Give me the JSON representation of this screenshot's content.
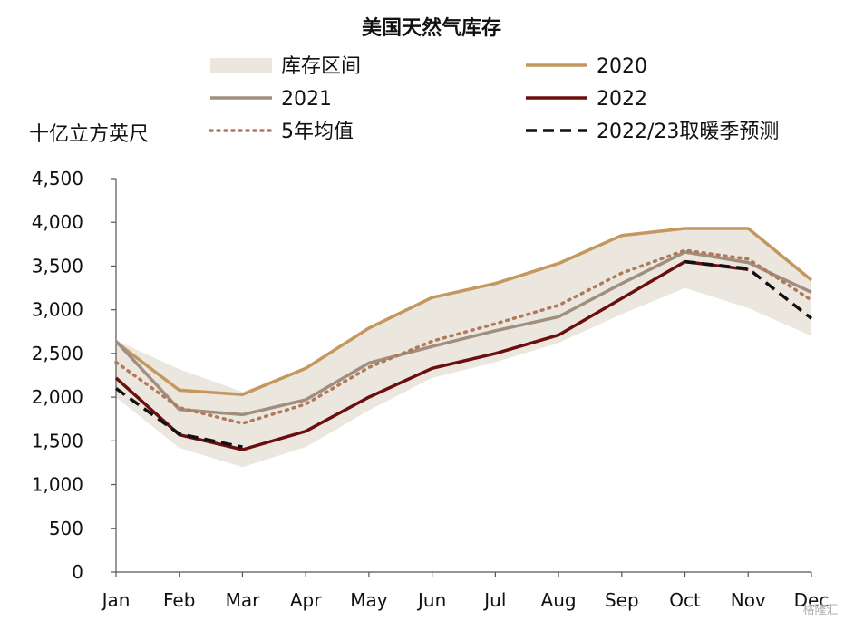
{
  "chart_data": {
    "type": "line",
    "title": "美国天然气库存",
    "ylabel": "十亿立方英尺",
    "xlabel": "",
    "categories": [
      "Jan",
      "Feb",
      "Mar",
      "Apr",
      "May",
      "Jun",
      "Jul",
      "Aug",
      "Sep",
      "Oct",
      "Nov",
      "Dec"
    ],
    "ylim": [
      0,
      4500
    ],
    "yticks": [
      0,
      500,
      1000,
      1500,
      2000,
      2500,
      3000,
      3500,
      4000,
      4500
    ],
    "ytick_labels": [
      "0",
      "500",
      "1,000",
      "1,500",
      "2,000",
      "2,500",
      "3,000",
      "3,500",
      "4,000",
      "4,500"
    ],
    "grid": false,
    "legend_placement": "top",
    "range_band": {
      "name": "库存区间",
      "color": "#ebe7df",
      "low": [
        2000,
        1420,
        1200,
        1430,
        1850,
        2220,
        2400,
        2620,
        2950,
        3250,
        3020,
        2700
      ],
      "high": [
        2650,
        2320,
        2060,
        2340,
        2800,
        3150,
        3320,
        3530,
        3850,
        3940,
        3940,
        3340
      ]
    },
    "series": [
      {
        "name": "2020",
        "color": "#c4975f",
        "style": "solid",
        "values": [
          2630,
          2080,
          2030,
          2330,
          2790,
          3140,
          3300,
          3530,
          3850,
          3930,
          3930,
          3340
        ]
      },
      {
        "name": "2021",
        "color": "#a08f7e",
        "style": "solid",
        "values": [
          2640,
          1860,
          1800,
          1970,
          2390,
          2580,
          2760,
          2920,
          3300,
          3660,
          3540,
          3200
        ]
      },
      {
        "name": "2022",
        "color": "#6b0e0e",
        "style": "solid",
        "values": [
          2220,
          1570,
          1400,
          1610,
          2000,
          2330,
          2500,
          2710,
          3130,
          3550,
          3460,
          null
        ]
      },
      {
        "name": "5年均值",
        "color": "#b07a5a",
        "style": "dotted",
        "values": [
          2400,
          1880,
          1700,
          1920,
          2340,
          2640,
          2840,
          3050,
          3420,
          3680,
          3580,
          3110
        ]
      },
      {
        "name": "2022/23取暖季预测",
        "color": "#111111",
        "style": "dashed",
        "values": [
          2100,
          1580,
          1430,
          null,
          null,
          null,
          null,
          null,
          null,
          3550,
          3470,
          2900
        ]
      }
    ]
  },
  "colors": {
    "axis": "#555555",
    "text": "#111111"
  },
  "watermark": "格隆汇"
}
